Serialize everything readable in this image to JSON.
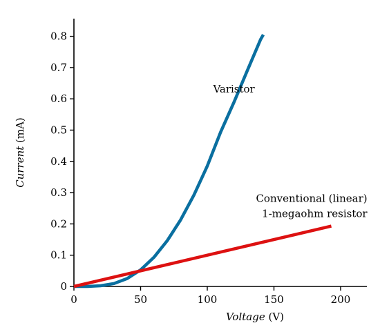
{
  "chart_data": {
    "type": "line",
    "xlabel": {
      "italic": "Voltage",
      "unit": " (V)"
    },
    "ylabel": {
      "italic": "Current",
      "unit": " (mA)"
    },
    "xlim": [
      0,
      220
    ],
    "ylim": [
      0,
      0.85
    ],
    "xticks": [
      0,
      50,
      100,
      150,
      200
    ],
    "xtick_labels": [
      "0",
      "50",
      "100",
      "150",
      "200"
    ],
    "yticks": [
      0,
      0.1,
      0.2,
      0.3,
      0.4,
      0.5,
      0.6,
      0.7,
      0.8
    ],
    "ytick_labels": [
      "0",
      "0.1",
      "0.2",
      "0.3",
      "0.4",
      "0.5",
      "0.6",
      "0.7",
      "0.8"
    ],
    "grid": false,
    "series": [
      {
        "name": "Varistor",
        "color": "#0a6fa0",
        "x": [
          0,
          10,
          20,
          30,
          40,
          50,
          60,
          70,
          80,
          90,
          100,
          110,
          120,
          130,
          140,
          142
        ],
        "y": [
          0,
          0.0001,
          0.0021,
          0.0093,
          0.0254,
          0.0529,
          0.0931,
          0.1465,
          0.2129,
          0.2923,
          0.385,
          0.4937,
          0.589,
          0.69,
          0.79,
          0.805
        ]
      },
      {
        "name": "Conventional (linear) 1-megaohm resistor",
        "color": "#dd1111",
        "x": [
          0,
          193
        ],
        "y": [
          0,
          0.193
        ]
      }
    ],
    "annotations": [
      {
        "lines": [
          "Varistor"
        ],
        "x": 120,
        "y": 0.62,
        "anchor": "middle"
      },
      {
        "lines": [
          "Conventional (linear)",
          "1-megaohm resistor"
        ],
        "x": 220,
        "y": 0.27,
        "anchor": "end"
      }
    ]
  }
}
